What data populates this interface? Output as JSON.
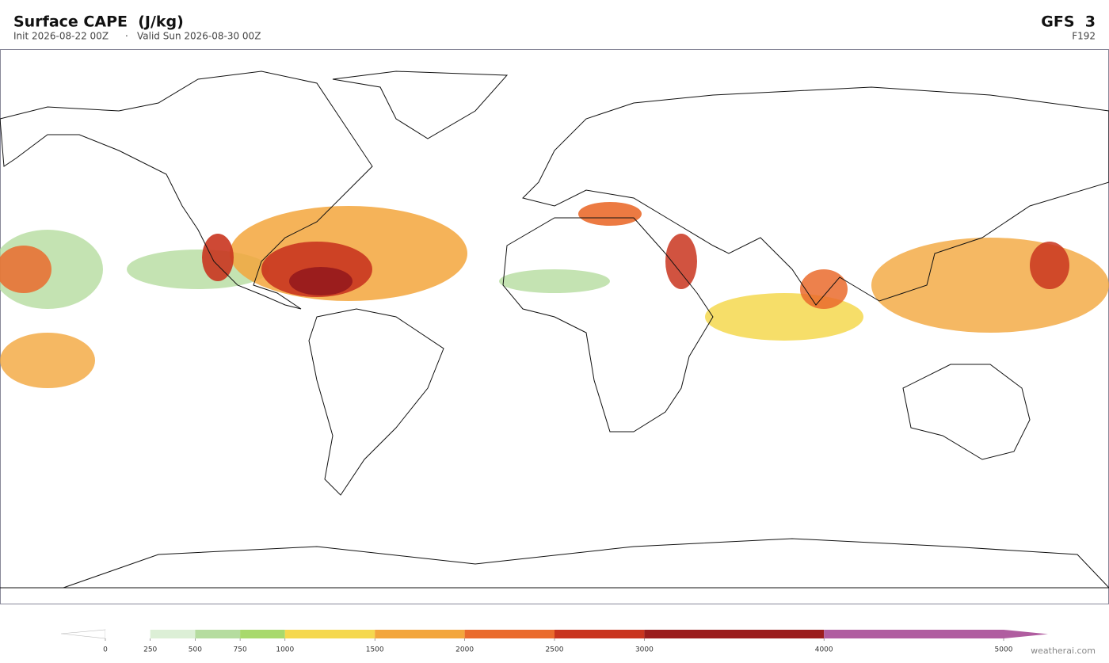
{
  "header": {
    "title": "Surface CAPE  (J/kg)",
    "init": "Init 2026-08-22 00Z",
    "separator": "·",
    "valid": "Valid Sun 2026-08-30 00Z",
    "model": "GFS  3",
    "forecast_hour": "F192"
  },
  "colorbar": {
    "lim": [
      0,
      5000
    ],
    "ticks": [
      0,
      250,
      500,
      750,
      1000,
      1500,
      2000,
      2500,
      3000,
      4000,
      5000
    ],
    "colors": [
      "#ffffff",
      "#dcefd6",
      "#b5dc9f",
      "#a8d96c",
      "#f5d84f",
      "#f3a63c",
      "#ea6b2d",
      "#c9351f",
      "#9b1d1d",
      "#b05da0"
    ],
    "over_color": "#b05da0"
  },
  "footer": {
    "watermark": "weatherai.com"
  }
}
